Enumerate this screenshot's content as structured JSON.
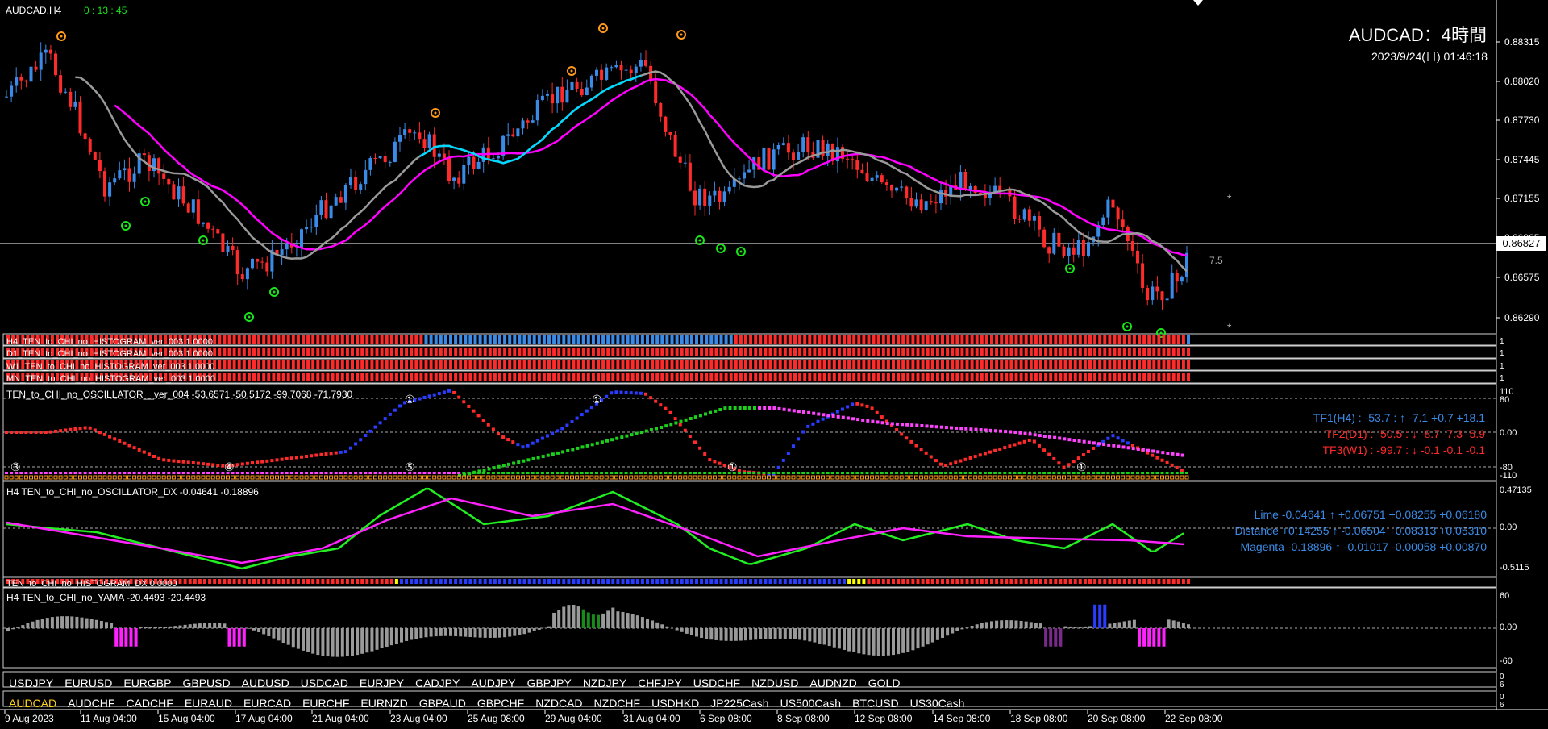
{
  "chart": {
    "symbol_tf": "AUDCAD,H4",
    "countdown": "0 : 13 : 45",
    "title": "AUDCAD：4時間",
    "datetime": "2023/9/24(日) 01:46:18",
    "current_price": "0.86827",
    "side_label": "7.5",
    "star_glyph": "*",
    "signal_glyph": "◉",
    "price_ticks": [
      "0.88315",
      "0.88020",
      "0.87730",
      "0.87445",
      "0.87155",
      "0.86865",
      "0.86575",
      "0.86290"
    ],
    "time_ticks": [
      "9 Aug 2023",
      "11 Aug 04:00",
      "15 Aug 04:00",
      "17 Aug 04:00",
      "21 Aug 04:00",
      "23 Aug 04:00",
      "25 Aug 08:00",
      "29 Aug 04:00",
      "31 Aug 04:00",
      "6 Sep 08:00",
      "8 Sep 08:00",
      "12 Sep 08:00",
      "14 Sep 08:00",
      "18 Sep 08:00",
      "20 Sep 08:00",
      "22 Sep 08:00"
    ],
    "colors": {
      "up": "#3a8be8",
      "down": "#ff2a2a",
      "ma_slow": "#ff00ff",
      "ma_fast_up": "#00d8ff",
      "ma_fast": "#9a9a9a",
      "grid": "#ffffff"
    }
  },
  "histogram_panels": [
    {
      "label": "H4_TEN_to_CHI_no_HISTOGRAM_ver_003 1.0000",
      "scale": "1"
    },
    {
      "label": "D1_TEN_to_CHI_no_HISTOGRAM_ver_003 1.0000",
      "scale": "1"
    },
    {
      "label": "W1_TEN_to_CHI_no_HISTOGRAM_ver_003 1.0000",
      "scale": "1"
    },
    {
      "label": "MN_TEN_to_CHI_no_HISTOGRAM_ver_003 1.0000",
      "scale": "1"
    }
  ],
  "oscillator": {
    "label": "TEN_to_CHI_no_OSCILLATOR__ver_004 -53.6571 -50.5172 -99.7068 -71.7930",
    "scale": [
      "110",
      "80",
      "0.00",
      "-80",
      "-110"
    ],
    "tf_lines": [
      {
        "text": "TF1(H4) : -53.7 : ↑  -7.1  +0.7  +18.1",
        "color": "#3a8be8"
      },
      {
        "text": "TF2(D1) : -50.5 : ↓  -8.7  -7.3  -5.9",
        "color": "#ff2a2a"
      },
      {
        "text": "TF3(W1) : -99.7 : ↓  -0.1  -0.1  -0.1",
        "color": "#ff2a2a"
      }
    ],
    "badges": [
      "③",
      "④",
      "①",
      "⑤",
      "①",
      "①",
      "①"
    ]
  },
  "dx": {
    "label": "H4 TEN_to_CHI_no_OSCILLATOR_DX  -0.04641 -0.18896",
    "scale": [
      "0.47135",
      "0.00",
      "-0.5115"
    ],
    "rows": [
      {
        "text": "Lime -0.04641 ↑  +0.06751  +0.08255  +0.06180",
        "color": "#3a8be8"
      },
      {
        "text": "Distance +0.14255 ↑  -0.06504  +0.08313  +0.05310",
        "color": "#3a8be8"
      },
      {
        "text": "Magenta -0.18896 ↑  -0.01017  -0.00058  +0.00870",
        "color": "#3a8be8"
      }
    ]
  },
  "dx_hist": {
    "label": "TEN_to_CHI_no_HISTOGRAM_DX 0.0000"
  },
  "yama": {
    "label": "H4  TEN_to_CHI_no_YAMA  -20.4493  -20.4493",
    "scale": [
      "60",
      "0.00",
      "-60"
    ]
  },
  "symbols_row1": [
    "USDJPY",
    "EURUSD",
    "EURGBP",
    "GBPUSD",
    "AUDUSD",
    "USDCAD",
    "EURJPY",
    "CADJPY",
    "AUDJPY",
    "GBPJPY",
    "NZDJPY",
    "CHFJPY",
    "USDCHF",
    "NZDUSD",
    "AUDNZD",
    "GOLD"
  ],
  "symbols_row2": [
    "AUDCAD",
    "AUDCHF",
    "CADCHF",
    "EURAUD",
    "EURCAD",
    "EURCHF",
    "EURNZD",
    "GBPAUD",
    "GBPCHF",
    "NZDCAD",
    "NZDCHF",
    "USDHKD",
    "JP225Cash",
    "US500Cash",
    "BTCUSD",
    "US30Cash"
  ],
  "active_symbol": "AUDCAD",
  "bottom_scale": [
    "0",
    "6"
  ]
}
